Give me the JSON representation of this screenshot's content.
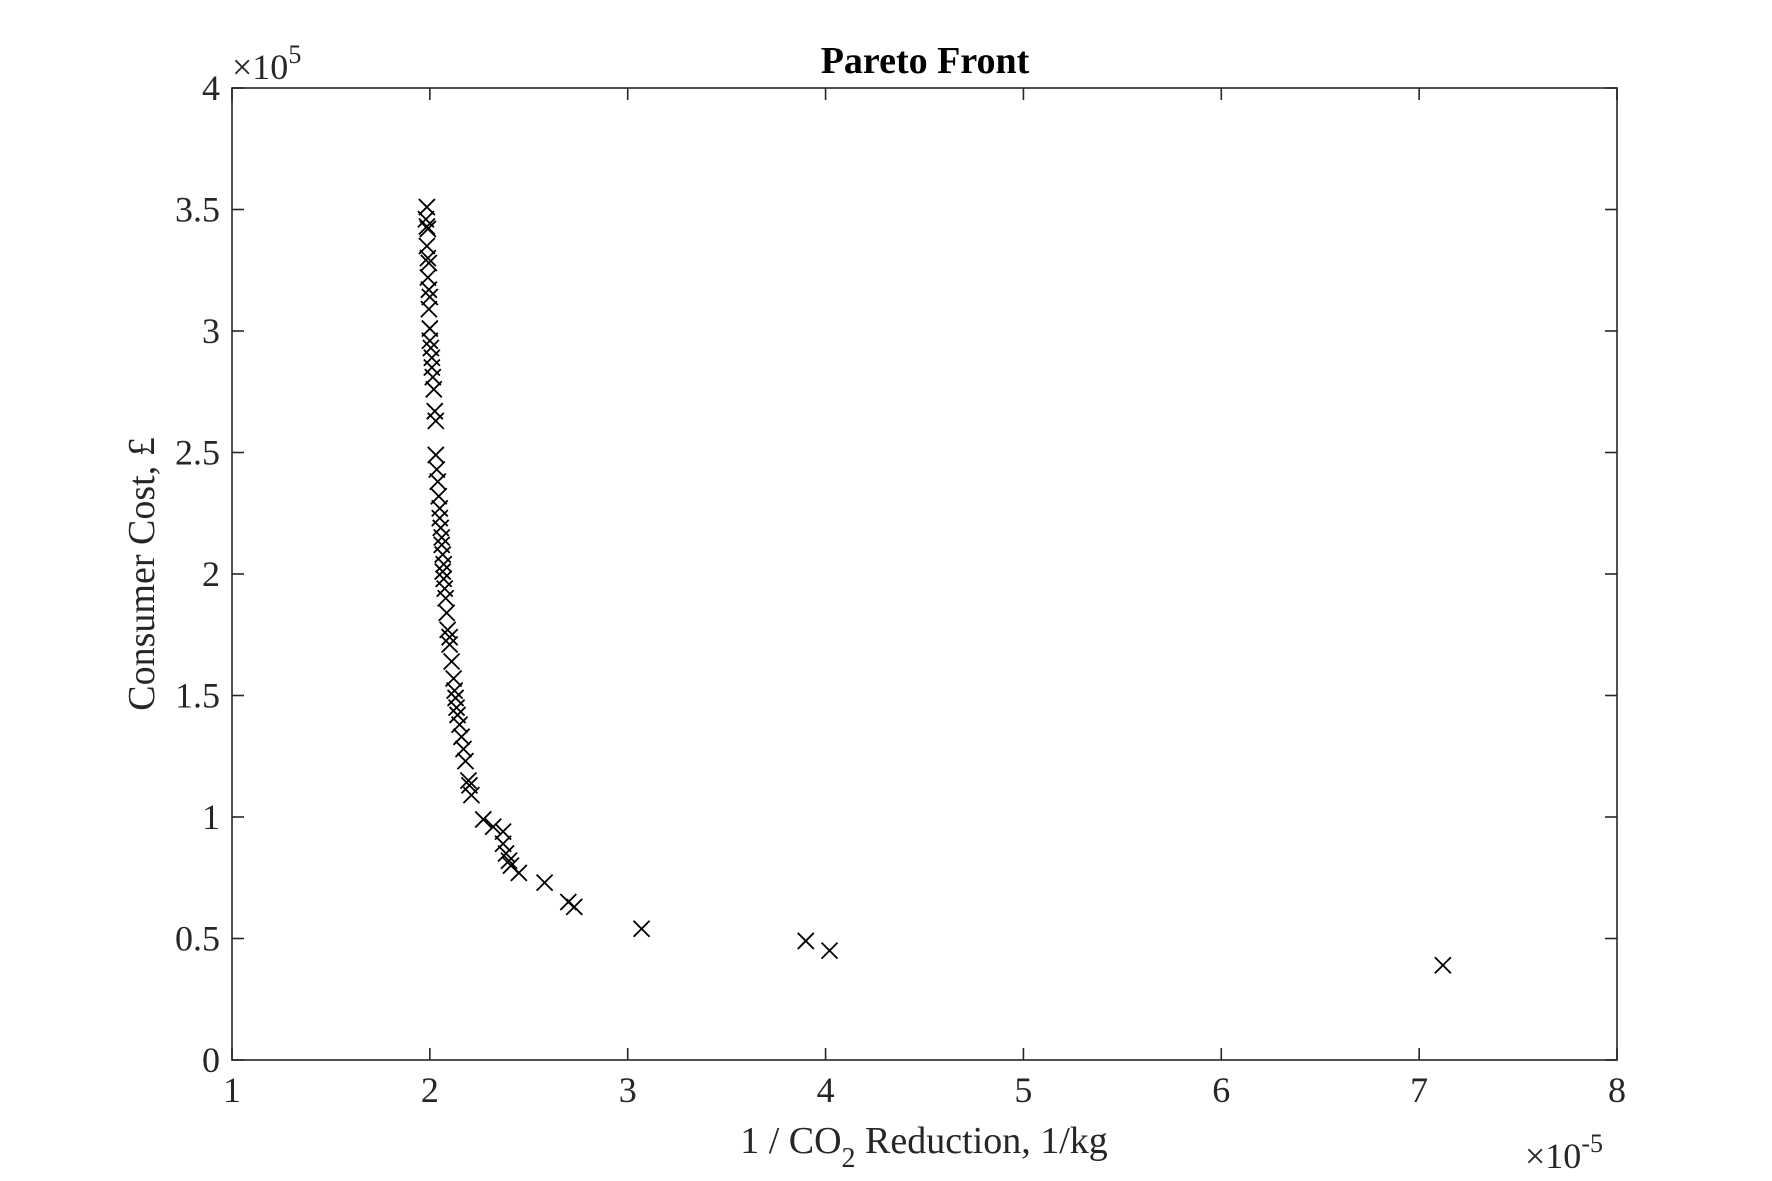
{
  "chart_data": {
    "type": "scatter",
    "title": "Pareto Front",
    "xlabel": "1 / CO2 Reduction, 1/kg",
    "xlabel_parts": {
      "prefix": "1 / CO",
      "sub": "2",
      "suffix": " Reduction, 1/kg"
    },
    "ylabel": "Consumer Cost, £",
    "xlim": [
      1e-05,
      8e-05
    ],
    "ylim": [
      0,
      400000
    ],
    "x_exponent": {
      "base": "×10",
      "power": "-5"
    },
    "y_exponent": {
      "base": "×10",
      "power": "5"
    },
    "xticks": [
      1,
      2,
      3,
      4,
      5,
      6,
      7,
      8
    ],
    "yticks": [
      0,
      0.5,
      1,
      1.5,
      2,
      2.5,
      3,
      3.5,
      4
    ],
    "xtick_labels": [
      "1",
      "2",
      "3",
      "4",
      "5",
      "6",
      "7",
      "8"
    ],
    "ytick_labels": [
      "0",
      "0.5",
      "1",
      "1.5",
      "2",
      "2.5",
      "3",
      "3.5",
      "4"
    ],
    "marker": "x",
    "marker_color": "#000000",
    "grid": false,
    "legend": "none",
    "x_scale_note": "x values in units of 1e-5 1/kg; y values in units of 1e5 £",
    "points": [
      [
        1.985,
        3.51
      ],
      [
        1.98,
        3.46
      ],
      [
        1.985,
        3.43
      ],
      [
        1.99,
        3.42
      ],
      [
        1.985,
        3.35
      ],
      [
        1.99,
        3.3
      ],
      [
        1.995,
        3.28
      ],
      [
        1.99,
        3.22
      ],
      [
        1.995,
        3.17
      ],
      [
        2.0,
        3.14
      ],
      [
        1.995,
        3.09
      ],
      [
        2.0,
        3.01
      ],
      [
        2.0,
        2.96
      ],
      [
        2.005,
        2.93
      ],
      [
        2.01,
        2.89
      ],
      [
        2.01,
        2.85
      ],
      [
        2.015,
        2.81
      ],
      [
        2.02,
        2.76
      ],
      [
        2.025,
        2.67
      ],
      [
        2.03,
        2.63
      ],
      [
        2.03,
        2.49
      ],
      [
        2.035,
        2.43
      ],
      [
        2.04,
        2.38
      ],
      [
        2.045,
        2.32
      ],
      [
        2.05,
        2.27
      ],
      [
        2.05,
        2.23
      ],
      [
        2.055,
        2.19
      ],
      [
        2.06,
        2.15
      ],
      [
        2.06,
        2.12
      ],
      [
        2.065,
        2.08
      ],
      [
        2.07,
        2.04
      ],
      [
        2.065,
        2.01
      ],
      [
        2.07,
        1.98
      ],
      [
        2.075,
        1.94
      ],
      [
        2.08,
        1.9
      ],
      [
        2.085,
        1.84
      ],
      [
        2.09,
        1.77
      ],
      [
        2.1,
        1.74
      ],
      [
        2.1,
        1.71
      ],
      [
        2.11,
        1.64
      ],
      [
        2.12,
        1.57
      ],
      [
        2.125,
        1.52
      ],
      [
        2.13,
        1.49
      ],
      [
        2.135,
        1.45
      ],
      [
        2.14,
        1.42
      ],
      [
        2.15,
        1.38
      ],
      [
        2.16,
        1.33
      ],
      [
        2.17,
        1.28
      ],
      [
        2.18,
        1.23
      ],
      [
        2.195,
        1.15
      ],
      [
        2.2,
        1.13
      ],
      [
        2.21,
        1.09
      ],
      [
        2.27,
        0.99
      ],
      [
        2.32,
        0.96
      ],
      [
        2.37,
        0.94
      ],
      [
        2.37,
        0.89
      ],
      [
        2.385,
        0.85
      ],
      [
        2.4,
        0.82
      ],
      [
        2.41,
        0.8
      ],
      [
        2.45,
        0.77
      ],
      [
        2.58,
        0.73
      ],
      [
        2.7,
        0.65
      ],
      [
        2.73,
        0.63
      ],
      [
        3.07,
        0.54
      ],
      [
        3.9,
        0.49
      ],
      [
        4.02,
        0.45
      ],
      [
        7.12,
        0.39
      ]
    ]
  }
}
